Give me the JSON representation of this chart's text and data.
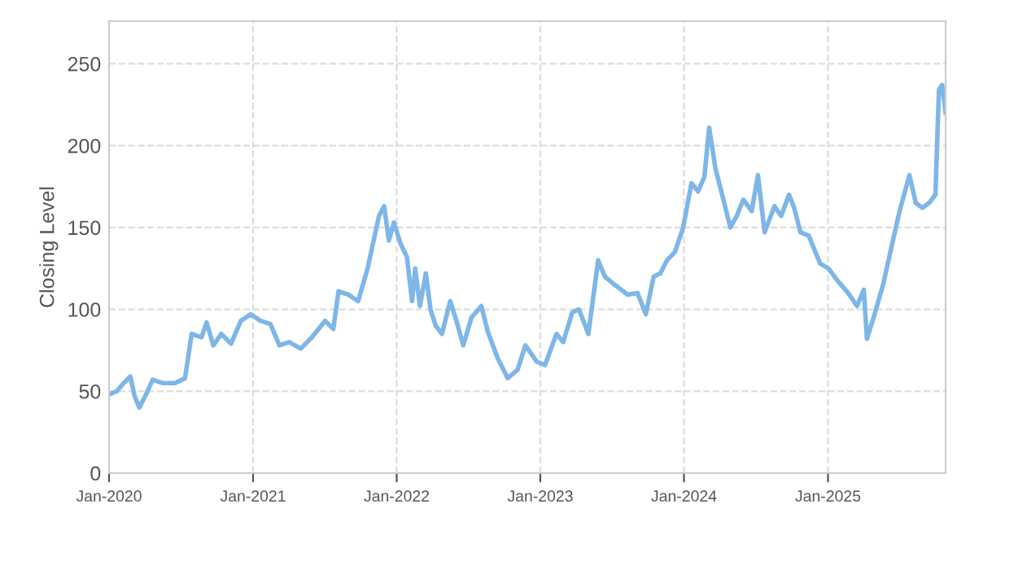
{
  "chart_data": {
    "type": "line",
    "ylabel": "Closing Level",
    "grid": true,
    "legend": false,
    "marker": "none",
    "line_style": "solid",
    "xlim": [
      "2020-01-01",
      "2025-10-27"
    ],
    "xticks": [
      {
        "value": "2020-01-01",
        "label": "Jan-2020"
      },
      {
        "value": "2021-01-01",
        "label": "Jan-2021"
      },
      {
        "value": "2022-01-01",
        "label": "Jan-2022"
      },
      {
        "value": "2023-01-01",
        "label": "Jan-2023"
      },
      {
        "value": "2024-01-01",
        "label": "Jan-2024"
      },
      {
        "value": "2025-01-01",
        "label": "Jan-2025"
      }
    ],
    "ylim": [
      0,
      276
    ],
    "yticks": [
      0,
      50,
      100,
      150,
      200,
      250
    ],
    "x": [
      "2020-01-01",
      "2020-01-21",
      "2020-02-07",
      "2020-02-24",
      "2020-03-06",
      "2020-03-18",
      "2020-04-04",
      "2020-04-21",
      "2020-05-15",
      "2020-06-17",
      "2020-07-12",
      "2020-07-29",
      "2020-08-23",
      "2020-09-05",
      "2020-09-22",
      "2020-10-12",
      "2020-11-06",
      "2020-12-01",
      "2020-12-26",
      "2021-01-20",
      "2021-02-14",
      "2021-03-09",
      "2021-04-03",
      "2021-05-02",
      "2021-05-31",
      "2021-07-03",
      "2021-07-24",
      "2021-08-06",
      "2021-08-31",
      "2021-09-25",
      "2021-10-19",
      "2021-11-17",
      "2021-11-30",
      "2021-12-12",
      "2021-12-25",
      "2022-01-11",
      "2022-01-27",
      "2022-02-09",
      "2022-02-17",
      "2022-03-01",
      "2022-03-16",
      "2022-03-28",
      "2022-04-10",
      "2022-04-26",
      "2022-05-17",
      "2022-06-03",
      "2022-06-19",
      "2022-07-10",
      "2022-08-04",
      "2022-08-21",
      "2022-09-15",
      "2022-10-10",
      "2022-11-04",
      "2022-11-24",
      "2022-12-23",
      "2023-01-13",
      "2023-02-11",
      "2023-02-28",
      "2023-03-23",
      "2023-04-09",
      "2023-05-03",
      "2023-05-28",
      "2023-06-14",
      "2023-07-09",
      "2023-08-11",
      "2023-09-05",
      "2023-09-26",
      "2023-10-16",
      "2023-11-02",
      "2023-11-19",
      "2023-12-09",
      "2023-12-30",
      "2024-01-20",
      "2024-02-06",
      "2024-02-22",
      "2024-03-05",
      "2024-03-21",
      "2024-04-07",
      "2024-04-28",
      "2024-05-14",
      "2024-05-31",
      "2024-06-21",
      "2024-07-07",
      "2024-07-24",
      "2024-08-18",
      "2024-09-04",
      "2024-09-24",
      "2024-10-07",
      "2024-10-23",
      "2024-11-13",
      "2024-12-12",
      "2025-01-02",
      "2025-01-27",
      "2025-02-21",
      "2025-03-16",
      "2025-04-02",
      "2025-04-10",
      "2025-04-27",
      "2025-05-21",
      "2025-06-15",
      "2025-07-02",
      "2025-07-27",
      "2025-08-12",
      "2025-08-29",
      "2025-09-15",
      "2025-10-01",
      "2025-10-10",
      "2025-10-18",
      "2025-10-27"
    ],
    "series": [
      {
        "color": "#7eb6e8",
        "values": [
          48,
          50,
          55,
          59,
          47,
          40,
          48,
          57,
          55,
          55,
          58,
          85,
          83,
          92,
          78,
          85,
          79,
          93,
          97,
          93,
          91,
          78,
          80,
          76,
          83,
          93,
          88,
          111,
          109,
          105,
          125,
          157,
          163,
          142,
          153,
          140,
          132,
          105,
          125,
          102,
          122,
          100,
          90,
          85,
          105,
          92,
          78,
          95,
          102,
          86,
          70,
          58,
          63,
          78,
          68,
          66,
          85,
          80,
          98,
          100,
          85,
          130,
          120,
          115,
          109,
          110,
          97,
          120,
          122,
          130,
          135,
          150,
          177,
          172,
          181,
          211,
          186,
          170,
          150,
          157,
          167,
          160,
          182,
          147,
          163,
          157,
          170,
          162,
          147,
          145,
          128,
          125,
          117,
          110,
          102,
          112,
          82,
          95,
          115,
          142,
          160,
          182,
          165,
          162,
          165,
          170,
          234,
          237,
          220
        ]
      }
    ]
  }
}
